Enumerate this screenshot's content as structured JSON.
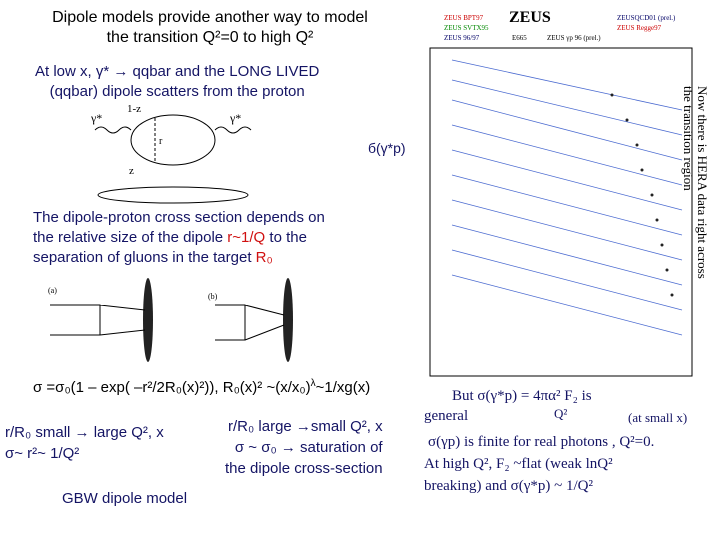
{
  "title": [
    "Dipole models provide another way to model",
    "the transition Q²=0 to high Q²"
  ],
  "dipole_intro": [
    "At low x, γ* → qqbar and the LONG LIVED",
    "(qqbar) dipole scatters from the proton"
  ],
  "diagram": {
    "gamma_in": "γ*",
    "gamma_out": "γ*",
    "one_minus_z": "1-z",
    "z": "z",
    "r": "r"
  },
  "sigma_label": "б(γ*p)",
  "cross_section": [
    "The dipole-proton cross section depends on",
    "the relative size of the dipole ",
    "r~1/Q",
    " to the",
    "separation of gluons in the target ",
    "R₀"
  ],
  "gluon_diagram": {
    "a": "(a)",
    "b": "(b)"
  },
  "formula": [
    "σ =σ₀(1 – exp( –r²/2R₀(x)²)), R₀(x)² ~(x/x₀)",
    "λ",
    "~1/xg(x)"
  ],
  "small": [
    "r/R₀ small → large Q², x",
    "σ~ r²~ 1/Q²"
  ],
  "large": [
    "r/R₀ large →small Q², x",
    "σ ~ σ₀ → saturation of",
    "the dipole cross-section"
  ],
  "model": "GBW dipole model",
  "plot": {
    "title": "ZEUS",
    "legend": [
      "ZEUS BPT97",
      "ZEUS SVTX95",
      "ZEUS 96/97",
      "E665",
      "ZEUS γp 96 (prel.)",
      "ZEUSQCD01 (prel.)",
      "ZEUS Regge97"
    ],
    "side_note": [
      "Now there is HERA data right across",
      "the transition region"
    ]
  },
  "notes": [
    "But  σ(γ*p) = 4πα² F₂   is",
    "general",
    "Q²",
    "(at small x)",
    "σ(γp) is finite for real photons , Q²=0.",
    "At high Q², F₂ ~flat  (weak lnQ²",
    "breaking) and σ(γ*p) ~ 1/Q²"
  ]
}
